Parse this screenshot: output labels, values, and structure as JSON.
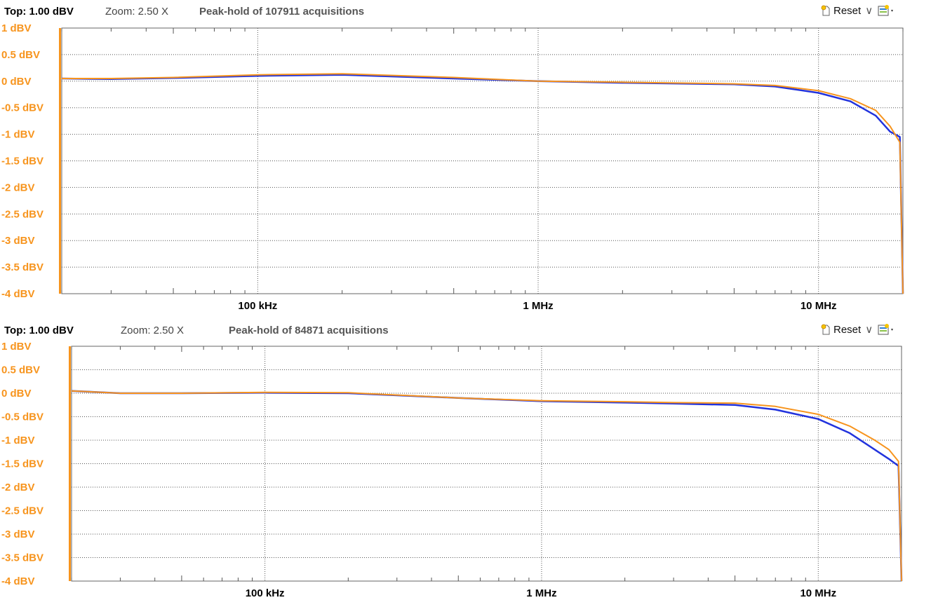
{
  "panels": [
    {
      "header": {
        "top": "Top: 1.00 dBV",
        "zoom": "Zoom: 2.50 X",
        "peak": "Peak-hold of 107911 acquisitions"
      },
      "toolbar": {
        "reset": "Reset"
      }
    },
    {
      "header": {
        "top": "Top: 1.00 dBV",
        "zoom": "Zoom: 2.50 X",
        "peak": "Peak-hold of 84871 acquisitions"
      },
      "toolbar": {
        "reset": "Reset"
      }
    }
  ],
  "colors": {
    "axis": "#F7941D",
    "blue_trace": "#2233DD",
    "orange_trace": "#F7941D",
    "grid": "#555555"
  },
  "chart_data": [
    {
      "type": "line",
      "x_scale": "log",
      "xlim_hz": [
        20000,
        20000000
      ],
      "ylim": [
        -4,
        1
      ],
      "yticks": [
        "1 dBV",
        "0.5 dBV",
        "0 dBV",
        "-0.5 dBV",
        "-1 dBV",
        "-1.5 dBV",
        "-2 dBV",
        "-2.5 dBV",
        "-3 dBV",
        "-3.5 dBV",
        "-4 dBV"
      ],
      "xticks": [
        {
          "value": 100000,
          "label": "100 kHz"
        },
        {
          "value": 1000000,
          "label": "1 MHz"
        },
        {
          "value": 10000000,
          "label": "10 MHz"
        }
      ],
      "grid": true,
      "series": [
        {
          "color": "blue",
          "x": [
            20000,
            30000,
            50000,
            100000,
            200000,
            500000,
            1000000,
            2000000,
            5000000,
            7000000,
            10000000,
            13000000,
            16000000,
            18000000,
            19500000,
            20000000
          ],
          "y": [
            0.05,
            0.04,
            0.06,
            0.1,
            0.12,
            0.05,
            0.0,
            -0.03,
            -0.06,
            -0.1,
            -0.22,
            -0.38,
            -0.65,
            -0.95,
            -1.05,
            -4.0
          ]
        },
        {
          "color": "orange",
          "x": [
            20000,
            30000,
            50000,
            100000,
            200000,
            500000,
            1000000,
            2000000,
            5000000,
            7000000,
            10000000,
            13000000,
            16000000,
            18000000,
            19500000,
            20000000
          ],
          "y": [
            0.05,
            0.05,
            0.07,
            0.12,
            0.14,
            0.07,
            0.0,
            -0.02,
            -0.05,
            -0.08,
            -0.18,
            -0.33,
            -0.55,
            -0.85,
            -1.15,
            -4.0
          ]
        }
      ]
    },
    {
      "type": "line",
      "x_scale": "log",
      "xlim_hz": [
        20000,
        20000000
      ],
      "ylim": [
        -4,
        1
      ],
      "yticks": [
        "1 dBV",
        "0.5 dBV",
        "0 dBV",
        "-0.5 dBV",
        "-1 dBV",
        "-1.5 dBV",
        "-2 dBV",
        "-2.5 dBV",
        "-3 dBV",
        "-3.5 dBV",
        "-4 dBV"
      ],
      "xticks": [
        {
          "value": 100000,
          "label": "100 kHz"
        },
        {
          "value": 1000000,
          "label": "1 MHz"
        },
        {
          "value": 10000000,
          "label": "10 MHz"
        }
      ],
      "grid": true,
      "series": [
        {
          "color": "blue",
          "x": [
            20000,
            30000,
            50000,
            100000,
            200000,
            500000,
            1000000,
            2000000,
            3000000,
            5000000,
            7000000,
            10000000,
            13000000,
            16000000,
            18000000,
            19500000,
            20000000
          ],
          "y": [
            0.05,
            0.0,
            0.0,
            0.01,
            0.0,
            -0.1,
            -0.17,
            -0.2,
            -0.22,
            -0.25,
            -0.35,
            -0.55,
            -0.85,
            -1.2,
            -1.4,
            -1.55,
            -4.0
          ]
        },
        {
          "color": "orange",
          "x": [
            20000,
            30000,
            50000,
            100000,
            200000,
            500000,
            1000000,
            2000000,
            3000000,
            5000000,
            7000000,
            10000000,
            13000000,
            16000000,
            18000000,
            19500000,
            20000000
          ],
          "y": [
            0.05,
            0.0,
            0.0,
            0.02,
            0.01,
            -0.1,
            -0.16,
            -0.18,
            -0.2,
            -0.21,
            -0.28,
            -0.45,
            -0.7,
            -1.0,
            -1.2,
            -1.45,
            -4.0
          ]
        }
      ]
    }
  ]
}
